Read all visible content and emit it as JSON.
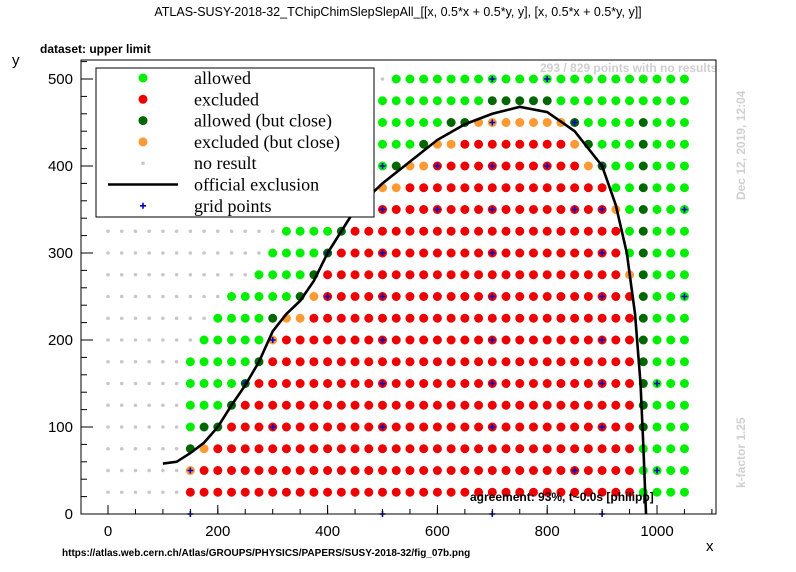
{
  "header": {
    "title": "ATLAS-SUSY-2018-32_TChipChimSlepSlepAll_[[x, 0.5*x + 0.5*y, y], [x, 0.5*x + 0.5*y, y]]",
    "dataset": "dataset: upper limit",
    "no_results": "293 / 829 points with no results",
    "date": "Dec 12, 2019, 12:04",
    "kfactor": "k-factor 1.25",
    "agreement": "agreement: 93%, t~0.0s [philipp]",
    "source_url": "https://atlas.web.cern.ch/Atlas/GROUPS/PHYSICS/PAPERS/SUSY-2018-32/fig_07b.png"
  },
  "colors": {
    "allowed": "#00ee00",
    "excluded": "#ee0000",
    "allowed_close": "#006600",
    "excluded_close": "#ff9933",
    "no_result": "#c8c8c8",
    "grid_points": "#0000cc",
    "official_exclusion": "#000000"
  },
  "chart_data": {
    "type": "scatter",
    "xlabel": "x",
    "ylabel": "y",
    "xlim": [
      -50,
      1110
    ],
    "ylim": [
      0,
      530
    ],
    "x_ticks": [
      "0",
      "200",
      "400",
      "600",
      "800",
      "1000"
    ],
    "y_ticks": [
      "0",
      "100",
      "200",
      "300",
      "400",
      "500"
    ],
    "legend": {
      "position": "top-left",
      "entries": [
        {
          "key": "allowed",
          "label": "allowed"
        },
        {
          "key": "excluded",
          "label": "excluded"
        },
        {
          "key": "allowed_close",
          "label": "allowed (but close)"
        },
        {
          "key": "excluded_close",
          "label": "excluded (but close)"
        },
        {
          "key": "no_result",
          "label": "no result"
        },
        {
          "key": "official_exclusion",
          "label": "official exclusion"
        },
        {
          "key": "grid_points",
          "label": "grid points"
        }
      ]
    },
    "grid": false,
    "official_exclusion": [
      [
        100,
        58
      ],
      [
        125,
        60
      ],
      [
        150,
        70
      ],
      [
        175,
        82
      ],
      [
        200,
        100
      ],
      [
        225,
        125
      ],
      [
        250,
        148
      ],
      [
        275,
        175
      ],
      [
        300,
        210
      ],
      [
        325,
        230
      ],
      [
        350,
        245
      ],
      [
        375,
        268
      ],
      [
        400,
        300
      ],
      [
        425,
        325
      ],
      [
        450,
        350
      ],
      [
        500,
        380
      ],
      [
        550,
        405
      ],
      [
        600,
        430
      ],
      [
        650,
        448
      ],
      [
        700,
        460
      ],
      [
        750,
        468
      ],
      [
        800,
        462
      ],
      [
        850,
        440
      ],
      [
        900,
        400
      ],
      [
        925,
        355
      ],
      [
        945,
        300
      ],
      [
        960,
        230
      ],
      [
        970,
        150
      ],
      [
        975,
        80
      ],
      [
        980,
        0
      ]
    ],
    "grid_points": [
      [
        150,
        0
      ],
      [
        500,
        0
      ],
      [
        700,
        0
      ],
      [
        900,
        0
      ],
      [
        150,
        50
      ],
      [
        850,
        50
      ],
      [
        1000,
        50
      ],
      [
        300,
        100
      ],
      [
        500,
        100
      ],
      [
        700,
        100
      ],
      [
        900,
        100
      ],
      [
        250,
        150
      ],
      [
        500,
        150
      ],
      [
        700,
        150
      ],
      [
        900,
        150
      ],
      [
        1000,
        150
      ],
      [
        300,
        200
      ],
      [
        500,
        200
      ],
      [
        700,
        200
      ],
      [
        900,
        200
      ],
      [
        400,
        250
      ],
      [
        500,
        250
      ],
      [
        700,
        250
      ],
      [
        900,
        250
      ],
      [
        1050,
        250
      ],
      [
        400,
        300
      ],
      [
        500,
        300
      ],
      [
        700,
        300
      ],
      [
        900,
        300
      ],
      [
        500,
        350
      ],
      [
        600,
        350
      ],
      [
        700,
        350
      ],
      [
        850,
        350
      ],
      [
        900,
        350
      ],
      [
        1050,
        350
      ],
      [
        500,
        400
      ],
      [
        600,
        400
      ],
      [
        700,
        400
      ],
      [
        800,
        400
      ],
      [
        900,
        400
      ],
      [
        700,
        450
      ],
      [
        850,
        450
      ],
      [
        700,
        500
      ],
      [
        800,
        500
      ]
    ],
    "point_rules": "points every 25 units in x and y, classified by distance from the official exclusion curve"
  }
}
